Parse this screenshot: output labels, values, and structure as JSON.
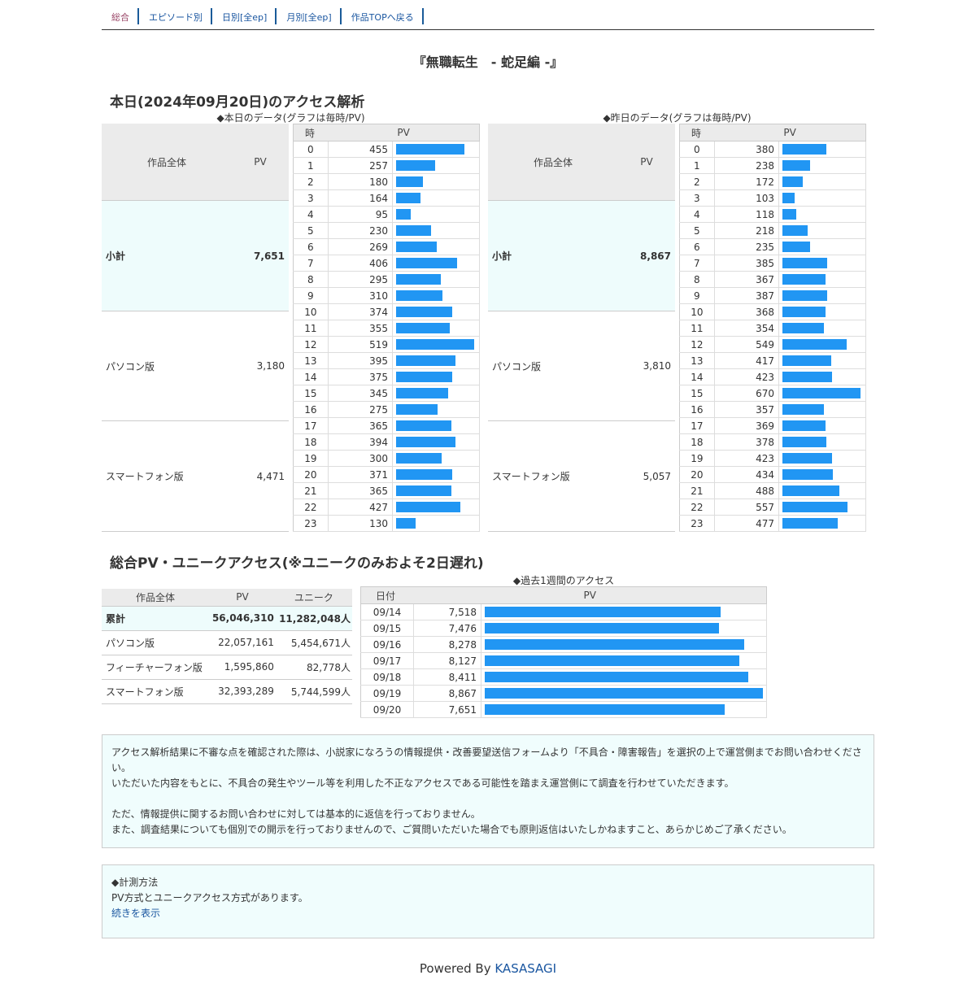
{
  "nav": [
    "総合",
    "エピソード別",
    "日別[全ep]",
    "月別[全ep]",
    "作品TOPへ戻る"
  ],
  "title": "『無職転生　- 蛇足編 -』",
  "today_heading": "本日(2024年09月20日)のアクセス解析",
  "today_caption": "◆本日のデータ(グラフは毎時/PV)",
  "yesterday_caption": "◆昨日のデータ(グラフは毎時/PV)",
  "sum_headers": [
    "作品全体",
    "PV"
  ],
  "hour_headers": [
    "時",
    "PV"
  ],
  "today_summary": [
    [
      "小計",
      "7,651"
    ],
    [
      "パソコン版",
      "3,180"
    ],
    [
      "スマートフォン版",
      "4,471"
    ]
  ],
  "yesterday_summary": [
    [
      "小計",
      "8,867"
    ],
    [
      "パソコン版",
      "3,810"
    ],
    [
      "スマートフォン版",
      "5,057"
    ]
  ],
  "today_hourly": [
    455,
    257,
    180,
    164,
    95,
    230,
    269,
    406,
    295,
    310,
    374,
    355,
    519,
    395,
    375,
    345,
    275,
    365,
    394,
    300,
    371,
    365,
    427,
    130
  ],
  "yesterday_hourly": [
    380,
    238,
    172,
    103,
    118,
    218,
    235,
    385,
    367,
    387,
    368,
    354,
    549,
    417,
    423,
    670,
    357,
    369,
    378,
    423,
    434,
    488,
    557,
    477
  ],
  "bar_color": "#2196f3",
  "total_heading": "総合PV・ユニークアクセス(※ユニークのみおよそ2日遅れ)",
  "total_headers": [
    "作品全体",
    "PV",
    "ユニーク"
  ],
  "total_rows": [
    [
      "累計",
      "56,046,310",
      "11,282,048人"
    ],
    [
      "パソコン版",
      "22,057,161",
      "5,454,671人"
    ],
    [
      "フィーチャーフォン版",
      "1,595,860",
      "82,778人"
    ],
    [
      "スマートフォン版",
      "32,393,289",
      "5,744,599人"
    ]
  ],
  "week_caption": "◆過去1週間のアクセス",
  "week_headers": [
    "日付",
    "PV"
  ],
  "week": [
    [
      "09/14",
      7518
    ],
    [
      "09/15",
      7476
    ],
    [
      "09/16",
      8278
    ],
    [
      "09/17",
      8127
    ],
    [
      "09/18",
      8411
    ],
    [
      "09/19",
      8867
    ],
    [
      "09/20",
      7651
    ]
  ],
  "notice": [
    "アクセス解析結果に不審な点を確認された際は、小説家になろうの情報提供・改善要望送信フォームより「不具合・障害報告」を選択の上で運営側までお問い合わせください。",
    "いただいた内容をもとに、不具合の発生やツール等を利用した不正なアクセスである可能性を踏まえ運営側にて調査を行わせていただきます。",
    "",
    "ただ、情報提供に関するお問い合わせに対しては基本的に返信を行っておりません。",
    "また、調査結果についても個別での開示を行っておりませんので、ご質問いただいた場合でも原則返信はいたしかねますこと、あらかじめご了承ください。"
  ],
  "method": {
    "title": "◆計測方法",
    "text": "PV方式とユニークアクセス方式があります。",
    "link": "続きを表示"
  },
  "footer": {
    "prefix": "Powered By ",
    "brand": "KASASAGI"
  }
}
